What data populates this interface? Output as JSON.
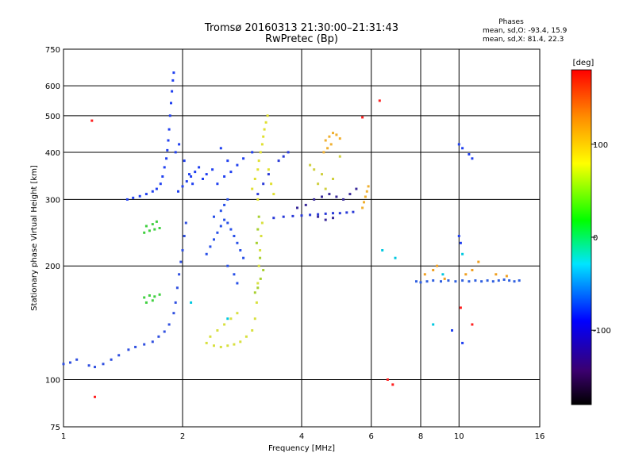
{
  "title": "Tromsø 20160313 21:30:00–21:31:43",
  "subtitle": "RwPretec (Bp)",
  "phases": {
    "heading": "Phases",
    "line1": "mean, sd,O:  -93.4, 15.9",
    "line2": "mean, sd,X:   81.4, 22.3"
  },
  "chart_data": {
    "type": "scatter",
    "xlabel": "Frequency [MHz]",
    "ylabel": "Stationary phase Virtual Height [km]",
    "x_scale": "log",
    "y_scale": "log",
    "xlim": [
      1,
      16
    ],
    "ylim": [
      75,
      750
    ],
    "x_ticks": [
      1,
      2,
      4,
      6,
      8,
      10,
      16
    ],
    "y_ticks": [
      75,
      100,
      200,
      300,
      400,
      500,
      600,
      750
    ],
    "x_grid": [
      2,
      4,
      6,
      8,
      10
    ],
    "y_grid": [
      100,
      200,
      300,
      400,
      500,
      600
    ],
    "grid": true,
    "colorbar": {
      "label": "[deg]",
      "range": [
        -180,
        180
      ],
      "ticks": [
        100,
        0,
        -100
      ],
      "colors": [
        "#000000",
        "#3b006e",
        "#0000ff",
        "#00e5ff",
        "#00ff00",
        "#ffff00",
        "#ff8c00",
        "#ff0000"
      ]
    },
    "series": [
      {
        "color": "#3050e0",
        "points": [
          [
            1.0,
            110
          ],
          [
            1.04,
            111
          ],
          [
            1.08,
            113
          ],
          [
            1.16,
            109
          ],
          [
            1.2,
            108
          ],
          [
            1.26,
            110
          ],
          [
            1.32,
            113
          ],
          [
            1.38,
            116
          ],
          [
            1.46,
            120
          ],
          [
            1.52,
            122
          ],
          [
            1.6,
            124
          ],
          [
            1.68,
            126
          ],
          [
            1.74,
            130
          ],
          [
            1.8,
            134
          ],
          [
            1.85,
            140
          ],
          [
            1.9,
            150
          ],
          [
            1.92,
            160
          ],
          [
            1.94,
            175
          ],
          [
            1.96,
            190
          ],
          [
            1.98,
            205
          ],
          [
            2.0,
            220
          ],
          [
            2.02,
            240
          ],
          [
            2.04,
            260
          ]
        ]
      },
      {
        "color": "#2040f0",
        "points": [
          [
            1.45,
            300
          ],
          [
            1.5,
            303
          ],
          [
            1.56,
            306
          ],
          [
            1.62,
            310
          ],
          [
            1.68,
            315
          ],
          [
            1.72,
            320
          ],
          [
            1.76,
            330
          ],
          [
            1.78,
            345
          ],
          [
            1.8,
            365
          ],
          [
            1.82,
            385
          ],
          [
            1.83,
            405
          ],
          [
            1.84,
            430
          ],
          [
            1.85,
            460
          ],
          [
            1.86,
            500
          ],
          [
            1.87,
            540
          ],
          [
            1.88,
            580
          ],
          [
            1.89,
            620
          ],
          [
            1.9,
            650
          ],
          [
            1.95,
            315
          ],
          [
            2.0,
            325
          ],
          [
            2.05,
            335
          ],
          [
            2.1,
            345
          ],
          [
            2.15,
            355
          ],
          [
            2.2,
            365
          ],
          [
            1.92,
            400
          ],
          [
            1.96,
            420
          ],
          [
            2.02,
            380
          ],
          [
            2.08,
            350
          ],
          [
            2.12,
            330
          ],
          [
            2.25,
            340
          ],
          [
            2.3,
            350
          ],
          [
            2.38,
            360
          ],
          [
            2.45,
            330
          ],
          [
            2.55,
            345
          ],
          [
            2.65,
            355
          ],
          [
            2.75,
            370
          ],
          [
            2.85,
            385
          ],
          [
            3.0,
            400
          ],
          [
            2.5,
            410
          ],
          [
            2.6,
            380
          ]
        ]
      },
      {
        "color": "#2850e8",
        "points": [
          [
            2.3,
            215
          ],
          [
            2.35,
            225
          ],
          [
            2.4,
            235
          ],
          [
            2.45,
            245
          ],
          [
            2.5,
            255
          ],
          [
            2.55,
            265
          ],
          [
            2.6,
            260
          ],
          [
            2.65,
            250
          ],
          [
            2.7,
            240
          ],
          [
            2.75,
            230
          ],
          [
            2.8,
            220
          ],
          [
            2.85,
            210
          ],
          [
            2.6,
            200
          ],
          [
            2.7,
            190
          ],
          [
            2.75,
            180
          ],
          [
            2.4,
            270
          ],
          [
            2.5,
            280
          ],
          [
            2.55,
            290
          ],
          [
            2.6,
            300
          ]
        ]
      },
      {
        "color": "#2a3ad8",
        "points": [
          [
            3.4,
            268
          ],
          [
            3.6,
            270
          ],
          [
            3.8,
            271
          ],
          [
            4.0,
            272
          ],
          [
            4.2,
            273
          ],
          [
            4.4,
            274
          ],
          [
            4.6,
            275
          ],
          [
            4.8,
            276
          ],
          [
            5.0,
            276
          ],
          [
            5.2,
            277
          ],
          [
            5.4,
            278
          ],
          [
            3.5,
            380
          ],
          [
            3.6,
            390
          ],
          [
            3.7,
            400
          ],
          [
            3.3,
            350
          ],
          [
            3.2,
            330
          ],
          [
            3.1,
            310
          ]
        ]
      },
      {
        "color": "#3a2a9a",
        "points": [
          [
            3.9,
            285
          ],
          [
            4.1,
            290
          ],
          [
            4.3,
            300
          ],
          [
            4.5,
            305
          ],
          [
            4.7,
            310
          ],
          [
            4.9,
            305
          ],
          [
            5.1,
            300
          ],
          [
            5.3,
            310
          ],
          [
            5.5,
            320
          ],
          [
            4.4,
            270
          ],
          [
            4.6,
            265
          ],
          [
            4.8,
            268
          ]
        ]
      },
      {
        "color": "#d8e040",
        "points": [
          [
            2.3,
            125
          ],
          [
            2.4,
            123
          ],
          [
            2.5,
            122
          ],
          [
            2.6,
            123
          ],
          [
            2.7,
            124
          ],
          [
            2.8,
            126
          ],
          [
            2.9,
            130
          ],
          [
            3.0,
            135
          ],
          [
            3.05,
            145
          ],
          [
            3.08,
            160
          ],
          [
            3.1,
            180
          ],
          [
            3.12,
            200
          ],
          [
            3.14,
            220
          ],
          [
            3.16,
            240
          ],
          [
            3.18,
            260
          ],
          [
            2.35,
            130
          ],
          [
            2.45,
            135
          ],
          [
            2.55,
            140
          ],
          [
            2.65,
            145
          ],
          [
            2.75,
            150
          ]
        ]
      },
      {
        "color": "#e0e030",
        "points": [
          [
            3.0,
            320
          ],
          [
            3.05,
            340
          ],
          [
            3.1,
            360
          ],
          [
            3.12,
            380
          ],
          [
            3.15,
            400
          ],
          [
            3.18,
            420
          ],
          [
            3.2,
            440
          ],
          [
            3.22,
            460
          ],
          [
            3.25,
            480
          ],
          [
            3.28,
            500
          ],
          [
            3.3,
            360
          ],
          [
            3.35,
            330
          ],
          [
            3.4,
            310
          ],
          [
            3.1,
            300
          ]
        ]
      },
      {
        "color": "#a8d030",
        "points": [
          [
            3.05,
            170
          ],
          [
            3.1,
            175
          ],
          [
            3.15,
            185
          ],
          [
            3.2,
            195
          ],
          [
            3.08,
            230
          ],
          [
            3.1,
            250
          ],
          [
            3.12,
            270
          ],
          [
            3.14,
            210
          ]
        ]
      },
      {
        "color": "#40d040",
        "points": [
          [
            1.6,
            245
          ],
          [
            1.65,
            248
          ],
          [
            1.7,
            250
          ],
          [
            1.75,
            252
          ],
          [
            1.62,
            255
          ],
          [
            1.68,
            258
          ],
          [
            1.72,
            262
          ],
          [
            1.6,
            165
          ],
          [
            1.65,
            167
          ],
          [
            1.7,
            166
          ],
          [
            1.75,
            168
          ],
          [
            1.62,
            160
          ],
          [
            1.68,
            162
          ]
        ]
      },
      {
        "color": "#f0b030",
        "points": [
          [
            4.6,
            430
          ],
          [
            4.7,
            440
          ],
          [
            4.8,
            450
          ],
          [
            4.9,
            445
          ],
          [
            5.0,
            435
          ],
          [
            4.55,
            400
          ],
          [
            4.65,
            410
          ],
          [
            4.75,
            420
          ],
          [
            5.7,
            285
          ],
          [
            5.75,
            295
          ],
          [
            5.8,
            305
          ],
          [
            5.85,
            315
          ],
          [
            5.9,
            325
          ]
        ]
      },
      {
        "color": "#d0d040",
        "points": [
          [
            4.2,
            370
          ],
          [
            4.3,
            360
          ],
          [
            4.5,
            350
          ],
          [
            4.4,
            330
          ],
          [
            4.6,
            320
          ],
          [
            4.8,
            340
          ],
          [
            5.0,
            390
          ]
        ]
      },
      {
        "color": "#3060e0",
        "points": [
          [
            7.8,
            182
          ],
          [
            8.0,
            181
          ],
          [
            8.3,
            182
          ],
          [
            8.6,
            183
          ],
          [
            9.0,
            182
          ],
          [
            9.4,
            183
          ],
          [
            9.8,
            182
          ],
          [
            10.2,
            183
          ],
          [
            10.6,
            182
          ],
          [
            11.0,
            183
          ],
          [
            11.4,
            182
          ],
          [
            11.8,
            183
          ],
          [
            12.2,
            182
          ],
          [
            12.6,
            183
          ],
          [
            13.0,
            184
          ],
          [
            13.4,
            183
          ],
          [
            13.8,
            182
          ],
          [
            14.2,
            183
          ]
        ]
      },
      {
        "color": "#f0a020",
        "points": [
          [
            8.2,
            190
          ],
          [
            8.6,
            195
          ],
          [
            8.8,
            200
          ],
          [
            9.2,
            185
          ],
          [
            10.4,
            190
          ],
          [
            10.8,
            195
          ],
          [
            11.2,
            205
          ],
          [
            12.4,
            190
          ],
          [
            13.2,
            188
          ]
        ]
      },
      {
        "color": "#2040f0",
        "points": [
          [
            10.0,
            420
          ],
          [
            10.2,
            410
          ],
          [
            10.6,
            395
          ],
          [
            10.8,
            385
          ],
          [
            10.0,
            240
          ],
          [
            10.1,
            230
          ],
          [
            9.6,
            135
          ],
          [
            10.2,
            125
          ]
        ]
      },
      {
        "color": "#ff2020",
        "points": [
          [
            1.2,
            90
          ],
          [
            1.18,
            485
          ],
          [
            5.7,
            495
          ],
          [
            6.3,
            548
          ],
          [
            6.6,
            100
          ],
          [
            6.8,
            97
          ],
          [
            10.1,
            155
          ],
          [
            10.8,
            140
          ]
        ]
      },
      {
        "color": "#00c8e0",
        "points": [
          [
            2.1,
            160
          ],
          [
            2.6,
            145
          ],
          [
            6.4,
            220
          ],
          [
            6.9,
            210
          ],
          [
            8.6,
            140
          ],
          [
            9.1,
            190
          ],
          [
            10.2,
            215
          ]
        ]
      }
    ]
  }
}
